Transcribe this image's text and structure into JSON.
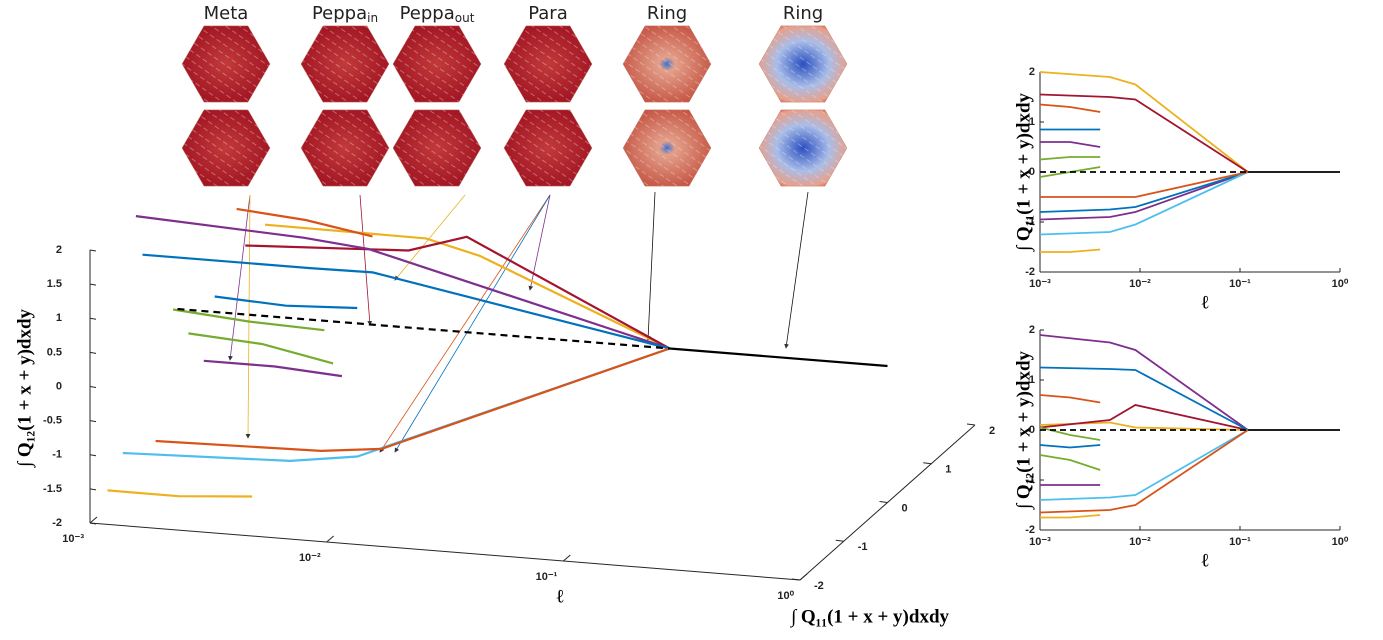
{
  "thumbnails": [
    {
      "name": "Meta"
    },
    {
      "name": "Peppa",
      "sub": "in"
    },
    {
      "name": "Peppa",
      "sub": "out"
    },
    {
      "name": "Para"
    },
    {
      "name": "Ring"
    },
    {
      "name": "Ring"
    }
  ],
  "chart_data": [
    {
      "type": "line3d",
      "xlabel": "ℓ",
      "ylabel": "∫ Q₁₂(1 + x + y)dxdy",
      "zlabel": "∫ Q₁₁(1 + x + y)dxdy",
      "xscale": "log",
      "xlim": [
        0.001,
        1
      ],
      "ylim": [
        -2,
        2
      ],
      "zlim": [
        -2,
        2
      ],
      "xticks": [
        {
          "value": 0.001,
          "label": "10⁻³"
        },
        {
          "value": 0.01,
          "label": "10⁻²"
        },
        {
          "value": 0.1,
          "label": "10⁻¹"
        },
        {
          "value": 1,
          "label": "10⁰"
        }
      ],
      "yticks": [
        2,
        1.5,
        1,
        0.5,
        0,
        -0.5,
        -1,
        -1.5,
        -2
      ],
      "zticks": [
        -2,
        -1,
        0,
        1,
        2
      ],
      "series": [
        {
          "color": "#edb120",
          "x": [
            0.001,
            0.005,
            0.009,
            0.12
          ],
          "y": [
            0.1,
            0.15,
            0.05,
            0
          ],
          "z": [
            2,
            1.9,
            1.75,
            0
          ]
        },
        {
          "color": "#a2142f",
          "x": [
            0.001,
            0.005,
            0.009,
            0.12
          ],
          "y": [
            0.05,
            0.2,
            0.5,
            0
          ],
          "z": [
            1.55,
            1.5,
            1.45,
            0
          ]
        },
        {
          "color": "#7e2f8e",
          "x": [
            0.001,
            0.005,
            0.009,
            0.12
          ],
          "y": [
            1.9,
            1.75,
            1.6,
            0
          ],
          "z": [
            -0.95,
            -0.9,
            -0.8,
            0
          ]
        },
        {
          "color": "#0072bd",
          "x": [
            0.001,
            0.005,
            0.009,
            0.12
          ],
          "y": [
            1.25,
            1.22,
            1.2,
            0
          ],
          "z": [
            -0.8,
            -0.75,
            -0.7,
            0
          ]
        },
        {
          "color": "#4dbeee",
          "x": [
            0.001,
            0.005,
            0.009,
            0.12
          ],
          "y": [
            -1.4,
            -1.35,
            -1.3,
            0
          ],
          "z": [
            -1.25,
            -1.2,
            -1.05,
            0
          ]
        },
        {
          "color": "#d95319",
          "x": [
            0.001,
            0.005,
            0.009,
            0.12
          ],
          "y": [
            -1.65,
            -1.6,
            -1.5,
            0
          ],
          "z": [
            -0.5,
            -0.5,
            -0.5,
            0
          ]
        },
        {
          "color": "#d95319",
          "x": [
            0.001,
            0.002,
            0.004
          ],
          "y": [
            0.7,
            0.65,
            0.55
          ],
          "z": [
            1.35,
            1.3,
            1.2
          ]
        },
        {
          "color": "#0072bd",
          "x": [
            0.001,
            0.002,
            0.004
          ],
          "y": [
            -0.3,
            -0.35,
            -0.3
          ],
          "z": [
            0.85,
            0.85,
            0.85
          ]
        },
        {
          "color": "#77ac30",
          "x": [
            0.001,
            0.002,
            0.004
          ],
          "y": [
            -0.5,
            -0.6,
            -0.8
          ],
          "z": [
            0.25,
            0.3,
            0.3
          ]
        },
        {
          "color": "#edb120",
          "x": [
            0.001,
            0.002,
            0.004
          ],
          "y": [
            -1.75,
            -1.75,
            -1.7
          ],
          "z": [
            -1.6,
            -1.6,
            -1.55
          ]
        },
        {
          "color": "#7e2f8e",
          "x": [
            0.001,
            0.002,
            0.004
          ],
          "y": [
            -1.1,
            -1.1,
            -1.1
          ],
          "z": [
            0.6,
            0.6,
            0.5
          ]
        },
        {
          "color": "#77ac30",
          "x": [
            0.001,
            0.002,
            0.004
          ],
          "y": [
            0.05,
            -0.1,
            -0.2
          ],
          "z": [
            -0.1,
            0,
            0.1
          ]
        },
        {
          "color": "#000000",
          "dashed": true,
          "x": [
            0.001,
            0.12
          ],
          "y": [
            0,
            0
          ],
          "z": [
            0,
            0
          ]
        },
        {
          "color": "#000000",
          "x": [
            0.12,
            1
          ],
          "y": [
            0,
            0
          ],
          "z": [
            0,
            0
          ]
        }
      ]
    },
    {
      "type": "line",
      "xlabel": "ℓ",
      "ylabel": "∫ Q₁₁(1 + x + y)dxdy",
      "xscale": "log",
      "xlim": [
        0.001,
        1
      ],
      "ylim": [
        -2,
        2
      ],
      "xticks": [
        {
          "value": 0.001,
          "label": "10⁻³"
        },
        {
          "value": 0.01,
          "label": "10⁻²"
        },
        {
          "value": 0.1,
          "label": "10⁻¹"
        },
        {
          "value": 1,
          "label": "10⁰"
        }
      ],
      "yticks": [
        -2,
        -1,
        0,
        1,
        2
      ],
      "series": [
        {
          "color": "#edb120",
          "x": [
            0.001,
            0.005,
            0.009,
            0.12
          ],
          "values": [
            2,
            1.9,
            1.75,
            0
          ]
        },
        {
          "color": "#a2142f",
          "x": [
            0.001,
            0.005,
            0.009,
            0.12
          ],
          "values": [
            1.55,
            1.5,
            1.45,
            0
          ]
        },
        {
          "color": "#7e2f8e",
          "x": [
            0.001,
            0.005,
            0.009,
            0.12
          ],
          "values": [
            -0.95,
            -0.9,
            -0.8,
            0
          ]
        },
        {
          "color": "#0072bd",
          "x": [
            0.001,
            0.005,
            0.009,
            0.12
          ],
          "values": [
            -0.8,
            -0.75,
            -0.7,
            0
          ]
        },
        {
          "color": "#4dbeee",
          "x": [
            0.001,
            0.005,
            0.009,
            0.12
          ],
          "values": [
            -1.25,
            -1.2,
            -1.05,
            0
          ]
        },
        {
          "color": "#d95319",
          "x": [
            0.001,
            0.005,
            0.009,
            0.12
          ],
          "values": [
            -0.5,
            -0.5,
            -0.5,
            0
          ]
        },
        {
          "color": "#d95319",
          "x": [
            0.001,
            0.002,
            0.004
          ],
          "values": [
            1.35,
            1.3,
            1.2
          ]
        },
        {
          "color": "#0072bd",
          "x": [
            0.001,
            0.002,
            0.004
          ],
          "values": [
            0.85,
            0.85,
            0.85
          ]
        },
        {
          "color": "#77ac30",
          "x": [
            0.001,
            0.002,
            0.004
          ],
          "values": [
            0.25,
            0.3,
            0.3
          ]
        },
        {
          "color": "#edb120",
          "x": [
            0.001,
            0.002,
            0.004
          ],
          "values": [
            -1.6,
            -1.6,
            -1.55
          ]
        },
        {
          "color": "#7e2f8e",
          "x": [
            0.001,
            0.002,
            0.004
          ],
          "values": [
            0.6,
            0.6,
            0.5
          ]
        },
        {
          "color": "#77ac30",
          "x": [
            0.001,
            0.002,
            0.004
          ],
          "values": [
            -0.1,
            0,
            0.1
          ]
        },
        {
          "color": "#000000",
          "dashed": true,
          "x": [
            0.001,
            0.12
          ],
          "values": [
            0,
            0
          ]
        },
        {
          "color": "#000000",
          "x": [
            0.12,
            1
          ],
          "values": [
            0,
            0
          ]
        }
      ]
    },
    {
      "type": "line",
      "xlabel": "ℓ",
      "ylabel": "∫ Q₁₂(1 + x + y)dxdy",
      "xscale": "log",
      "xlim": [
        0.001,
        1
      ],
      "ylim": [
        -2,
        2
      ],
      "xticks": [
        {
          "value": 0.001,
          "label": "10⁻³"
        },
        {
          "value": 0.01,
          "label": "10⁻²"
        },
        {
          "value": 0.1,
          "label": "10⁻¹"
        },
        {
          "value": 1,
          "label": "10⁰"
        }
      ],
      "yticks": [
        -2,
        -1,
        0,
        1,
        2
      ],
      "series": [
        {
          "color": "#edb120",
          "x": [
            0.001,
            0.005,
            0.009,
            0.12
          ],
          "values": [
            0.1,
            0.15,
            0.05,
            0
          ]
        },
        {
          "color": "#a2142f",
          "x": [
            0.001,
            0.005,
            0.009,
            0.12
          ],
          "values": [
            0.05,
            0.2,
            0.5,
            0
          ]
        },
        {
          "color": "#7e2f8e",
          "x": [
            0.001,
            0.005,
            0.009,
            0.12
          ],
          "values": [
            1.9,
            1.75,
            1.6,
            0
          ]
        },
        {
          "color": "#0072bd",
          "x": [
            0.001,
            0.005,
            0.009,
            0.12
          ],
          "values": [
            1.25,
            1.22,
            1.2,
            0
          ]
        },
        {
          "color": "#4dbeee",
          "x": [
            0.001,
            0.005,
            0.009,
            0.12
          ],
          "values": [
            -1.4,
            -1.35,
            -1.3,
            0
          ]
        },
        {
          "color": "#d95319",
          "x": [
            0.001,
            0.005,
            0.009,
            0.12
          ],
          "values": [
            -1.65,
            -1.6,
            -1.5,
            0
          ]
        },
        {
          "color": "#d95319",
          "x": [
            0.001,
            0.002,
            0.004
          ],
          "values": [
            0.7,
            0.65,
            0.55
          ]
        },
        {
          "color": "#0072bd",
          "x": [
            0.001,
            0.002,
            0.004
          ],
          "values": [
            -0.3,
            -0.35,
            -0.3
          ]
        },
        {
          "color": "#77ac30",
          "x": [
            0.001,
            0.002,
            0.004
          ],
          "values": [
            -0.5,
            -0.6,
            -0.8
          ]
        },
        {
          "color": "#edb120",
          "x": [
            0.001,
            0.002,
            0.004
          ],
          "values": [
            -1.75,
            -1.75,
            -1.7
          ]
        },
        {
          "color": "#7e2f8e",
          "x": [
            0.001,
            0.002,
            0.004
          ],
          "values": [
            -1.1,
            -1.1,
            -1.1
          ]
        },
        {
          "color": "#77ac30",
          "x": [
            0.001,
            0.002,
            0.004
          ],
          "values": [
            0.05,
            -0.1,
            -0.2
          ]
        },
        {
          "color": "#000000",
          "dashed": true,
          "x": [
            0.001,
            0.12
          ],
          "values": [
            0,
            0
          ]
        },
        {
          "color": "#000000",
          "x": [
            0.12,
            1
          ],
          "values": [
            0,
            0
          ]
        }
      ]
    }
  ]
}
